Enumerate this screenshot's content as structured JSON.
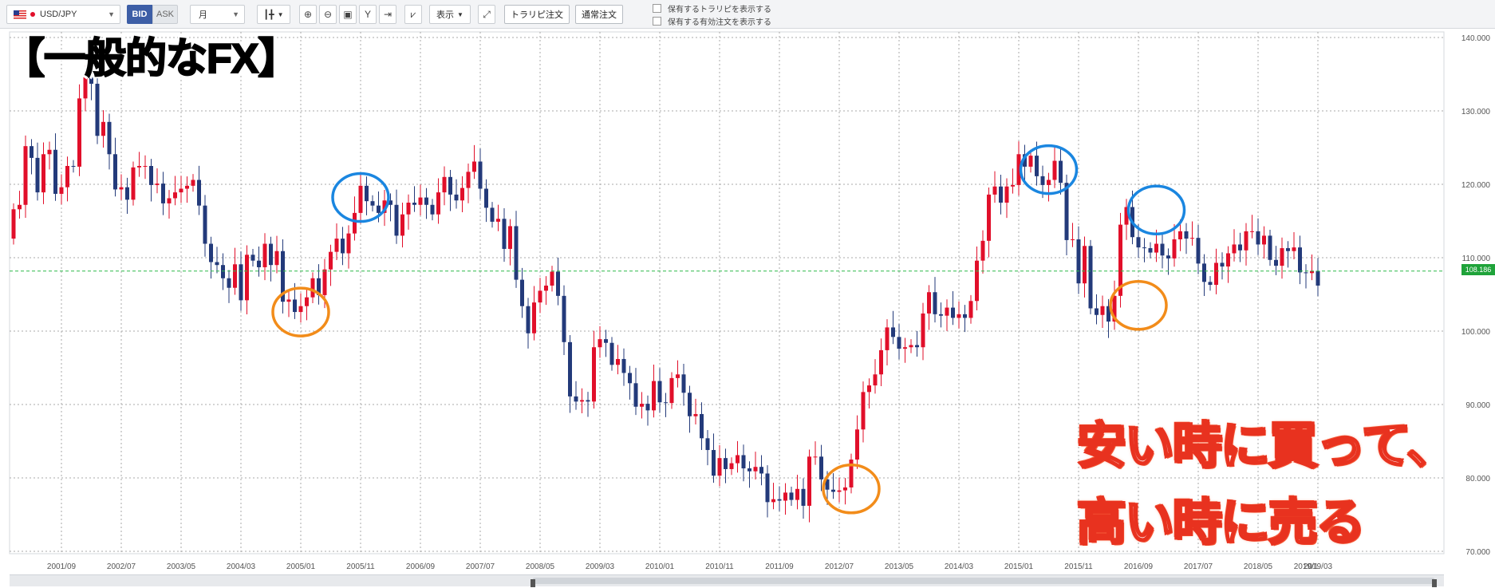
{
  "toolbar": {
    "symbol": "USD/JPY",
    "bid_label": "BID",
    "ask_label": "ASK",
    "period": "月",
    "display_label": "表示",
    "trail_order_label": "トラリピ注文",
    "normal_order_label": "通常注文",
    "show_held_trail": "保有するトラリピを表示する",
    "show_held_orders": "保有する有効注文を表示する"
  },
  "title_banner": "【一般的なFX】",
  "caption": {
    "line1": "安い時に買って、",
    "line2": "高い時に売る"
  },
  "current_price": "108.186",
  "colors": {
    "up": "#e10f2a",
    "down": "#233a7a",
    "grid": "#a9a9a9",
    "current_line": "#2fb84a",
    "circle_low": "#f28c1a",
    "circle_high": "#1a86e0"
  },
  "markers": {
    "low": [
      {
        "date": "2005-01",
        "value": 102.6
      },
      {
        "date": "2012-09",
        "value": 78.5
      },
      {
        "date": "2016-09",
        "value": 103.5
      }
    ],
    "high": [
      {
        "date": "2005-11",
        "value": 118.2
      },
      {
        "date": "2015-06",
        "value": 122.0
      },
      {
        "date": "2016-12",
        "value": 116.5
      }
    ]
  },
  "chart_data": {
    "type": "candlestick",
    "ylim": [
      70,
      140
    ],
    "y_ticks": [
      "140.000",
      "130.000",
      "120.000",
      "110.000",
      "100.000",
      "90.000",
      "80.000",
      "70.000"
    ],
    "x_ticks": [
      "2001/09",
      "2002/07",
      "2003/05",
      "2004/03",
      "2005/01",
      "2005/11",
      "2006/09",
      "2007/07",
      "2008/05",
      "2009/03",
      "2010/01",
      "2010/11",
      "2011/09",
      "2012/07",
      "2013/05",
      "2014/03",
      "2015/01",
      "2015/11",
      "2016/09",
      "2017/07",
      "2018/05",
      "2019/03",
      "2019/1"
    ],
    "start": "2001-01",
    "closes": [
      116.6,
      117.2,
      125.2,
      123.6,
      118.9,
      124.1,
      124.7,
      118.7,
      119.6,
      122.5,
      122.4,
      131.7,
      134.7,
      133.7,
      126.6,
      128.5,
      124.1,
      119.3,
      119.6,
      117.9,
      122.3,
      122.5,
      122.5,
      119.9,
      120.1,
      117.4,
      118.1,
      118.9,
      119.4,
      119.8,
      120.6,
      117.1,
      111.9,
      109.4,
      109.0,
      107.2,
      105.9,
      109.1,
      104.2,
      110.4,
      109.6,
      108.7,
      111.9,
      109.0,
      110.9,
      104.0,
      104.3,
      102.6,
      103.4,
      104.6,
      107.2,
      104.9,
      108.4,
      110.8,
      112.6,
      110.6,
      113.3,
      116.1,
      119.8,
      117.7,
      117.1,
      116.1,
      117.8,
      117.2,
      113.0,
      115.9,
      117.5,
      117.2,
      118.2,
      117.2,
      115.9,
      118.9,
      121.0,
      118.6,
      117.8,
      119.5,
      121.7,
      123.1,
      119.4,
      116.8,
      114.9,
      115.3,
      111.2,
      114.3,
      107.0,
      103.4,
      99.7,
      103.9,
      105.5,
      106.2,
      108.1,
      104.8,
      98.5,
      91.1,
      90.4,
      90.6,
      90.4,
      97.8,
      98.9,
      98.4,
      95.4,
      96.2,
      94.3,
      92.9,
      89.7,
      90.1,
      89.2,
      93.2,
      90.3,
      90.2,
      93.6,
      94.1,
      91.6,
      88.4,
      88.7,
      85.4,
      83.8,
      80.3,
      82.7,
      81.2,
      82.0,
      83.1,
      81.3,
      80.9,
      81.5,
      80.6,
      76.7,
      77.1,
      76.9,
      78.0,
      77.0,
      78.5,
      76.2,
      82.9,
      82.9,
      79.8,
      78.4,
      78.1,
      78.3,
      78.7,
      82.5,
      86.6,
      91.7,
      92.6,
      94.1,
      97.4,
      100.5,
      99.2,
      97.6,
      97.8,
      98.1,
      97.8,
      102.4,
      105.3,
      102.3,
      102.1,
      103.2,
      101.8,
      102.3,
      101.8,
      104.1,
      109.6,
      112.3,
      118.6,
      119.7,
      117.5,
      119.7,
      119.9,
      124.1,
      122.4,
      123.9,
      121.1,
      119.9,
      120.6,
      123.2,
      120.2,
      112.4,
      112.5,
      106.5,
      111.6,
      103.1,
      102.2,
      103.4,
      101.3,
      104.8,
      114.5,
      116.9,
      112.8,
      111.4,
      111.3,
      110.7,
      111.9,
      110.3,
      109.9,
      112.5,
      113.6,
      112.6,
      112.7,
      109.2,
      106.7,
      106.3,
      109.3,
      108.8,
      110.6,
      111.8,
      111.0,
      113.6,
      113.6,
      111.8,
      113.0,
      109.7,
      108.9,
      111.3,
      110.9,
      111.4,
      108.0,
      107.9,
      108.2,
      106.2
    ],
    "title": "",
    "xlabel": "",
    "ylabel": ""
  }
}
